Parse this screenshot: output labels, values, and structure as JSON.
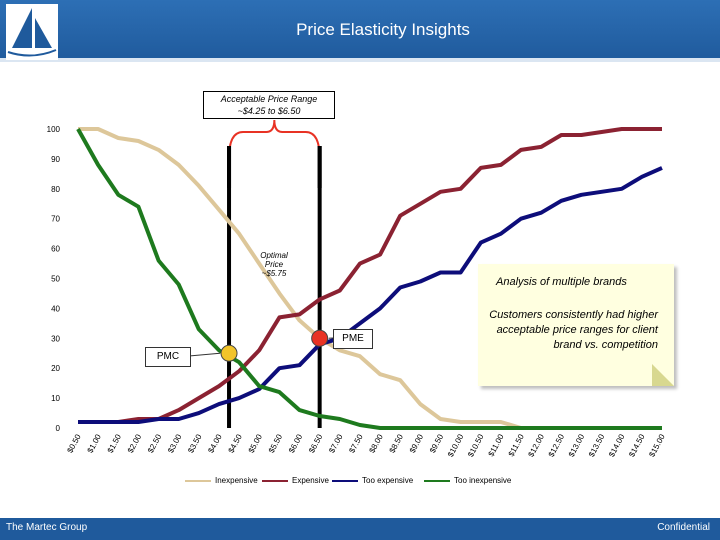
{
  "header": {
    "title": "Price Elasticity Insights"
  },
  "footer": {
    "left": "The Martec Group",
    "right": "Confidential"
  },
  "annotations": {
    "range_title": "Acceptable Price Range",
    "range_value": "~$4.25 to $6.50",
    "optimal_1": "Optimal",
    "optimal_2": "Price",
    "optimal_3": "~$5.75",
    "callout_title": "Analysis of multiple brands",
    "callout_body": "Customers consistently had higher acceptable price ranges for client brand vs. competition",
    "pmc": "PMC",
    "pme": "PME"
  },
  "colors": {
    "header": "#1f5a9c",
    "inexpensive": "#ddc79a",
    "expensive": "#8b2232",
    "too_expensive": "#0d0d7a",
    "too_inexpensive": "#1e7a1e",
    "marker": "#e83224"
  },
  "chart_data": {
    "type": "line",
    "title": "",
    "xlabel": "",
    "ylabel": "",
    "ylim": [
      0,
      100
    ],
    "yticks": [
      0,
      10,
      20,
      30,
      40,
      50,
      60,
      70,
      80,
      90,
      100
    ],
    "categories": [
      "$0.50",
      "$1.00",
      "$1.50",
      "$2.00",
      "$2.50",
      "$3.00",
      "$3.50",
      "$4.00",
      "$4.50",
      "$5.00",
      "$5.50",
      "$6.00",
      "$6.50",
      "$7.00",
      "$7.50",
      "$8.00",
      "$8.50",
      "$9.00",
      "$9.50",
      "$10.00",
      "$10.50",
      "$11.00",
      "$11.50",
      "$12.00",
      "$12.50",
      "$13.00",
      "$13.50",
      "$14.00",
      "$14.50",
      "$15.00"
    ],
    "series": [
      {
        "name": "Inexpensive",
        "color": "#ddc79a",
        "values": [
          100,
          100,
          97,
          96,
          93,
          88,
          81,
          73,
          65,
          55,
          45,
          36,
          30,
          26,
          24,
          18,
          16,
          8,
          3,
          2,
          2,
          2,
          0,
          0,
          0,
          0,
          0,
          0,
          0,
          0
        ]
      },
      {
        "name": "Expensive",
        "color": "#8b2232",
        "values": [
          2,
          2,
          2,
          3,
          3,
          6,
          10,
          14,
          19,
          26,
          37,
          38,
          43,
          46,
          55,
          58,
          71,
          75,
          79,
          80,
          87,
          88,
          93,
          94,
          98,
          98,
          99,
          100,
          100,
          100
        ]
      },
      {
        "name": "Too expensive",
        "color": "#0d0d7a",
        "values": [
          2,
          2,
          2,
          2,
          3,
          3,
          5,
          8,
          10,
          13,
          20,
          21,
          28,
          30,
          35,
          40,
          47,
          49,
          52,
          52,
          62,
          65,
          70,
          72,
          76,
          78,
          79,
          80,
          84,
          87
        ]
      },
      {
        "name": "Too inexpensive",
        "color": "#1e7a1e",
        "values": [
          100,
          88,
          78,
          74,
          56,
          48,
          33,
          26,
          22,
          14,
          12,
          6,
          4,
          3,
          1,
          0,
          0,
          0,
          0,
          0,
          0,
          0,
          0,
          0,
          0,
          0,
          0,
          0,
          0,
          0
        ]
      }
    ],
    "markers": [
      {
        "name": "PMC",
        "x": "$4.25",
        "y": 25,
        "color": "#f2c42a"
      },
      {
        "name": "PME",
        "x": "$6.50",
        "y": 30,
        "color": "#e83224"
      }
    ],
    "vertical_lines": [
      "$4.25",
      "$6.50"
    ]
  }
}
